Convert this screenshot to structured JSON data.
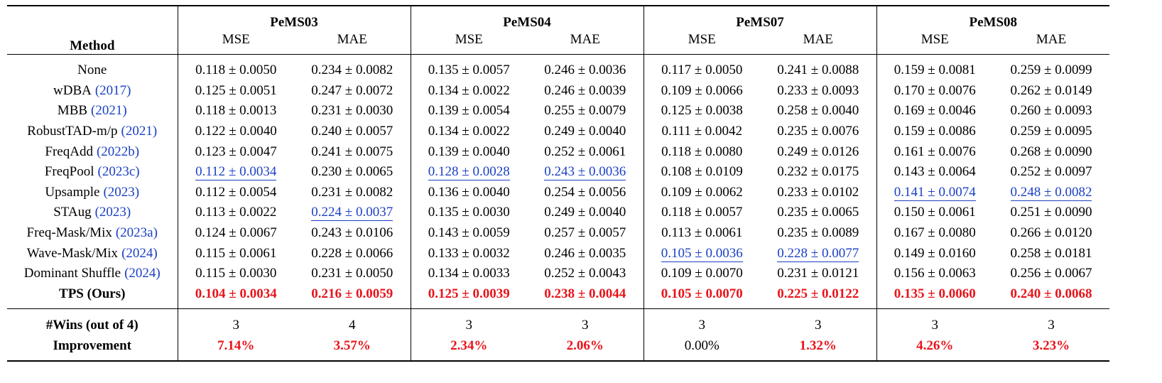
{
  "table": {
    "header": {
      "method": "Method",
      "groups": [
        {
          "name": "PeMS03",
          "columns": [
            "MSE",
            "MAE"
          ]
        },
        {
          "name": "PeMS04",
          "columns": [
            "MSE",
            "MAE"
          ]
        },
        {
          "name": "PeMS07",
          "columns": [
            "MSE",
            "MAE"
          ]
        },
        {
          "name": "PeMS08",
          "columns": [
            "MSE",
            "MAE"
          ]
        }
      ]
    },
    "rows": [
      {
        "method": "None",
        "cells": [
          "0.118 ± 0.0050",
          "0.234 ± 0.0082",
          "0.135 ± 0.0057",
          "0.246 ± 0.0036",
          "0.117 ± 0.0050",
          "0.241 ± 0.0088",
          "0.159 ± 0.0081",
          "0.259 ± 0.0099"
        ]
      },
      {
        "method": "wDBA",
        "cite": "(2017)",
        "cells": [
          "0.125 ± 0.0051",
          "0.247 ± 0.0072",
          "0.134 ± 0.0022",
          "0.246 ± 0.0039",
          "0.109 ± 0.0066",
          "0.233 ± 0.0093",
          "0.170 ± 0.0076",
          "0.262 ± 0.0149"
        ]
      },
      {
        "method": "MBB",
        "cite": "(2021)",
        "cells": [
          "0.118 ± 0.0013",
          "0.231 ± 0.0030",
          "0.139 ± 0.0054",
          "0.255 ± 0.0079",
          "0.125 ± 0.0038",
          "0.258 ± 0.0040",
          "0.169 ± 0.0046",
          "0.260 ± 0.0093"
        ]
      },
      {
        "method": "RobustTAD-m/p",
        "cite": "(2021)",
        "cells": [
          "0.122 ± 0.0040",
          "0.240 ± 0.0057",
          "0.134 ± 0.0022",
          "0.249 ± 0.0040",
          "0.111 ± 0.0042",
          "0.235 ± 0.0076",
          "0.159 ± 0.0086",
          "0.259 ± 0.0095"
        ]
      },
      {
        "method": "FreqAdd",
        "cite": "(2022b)",
        "cells": [
          "0.123 ± 0.0047",
          "0.241 ± 0.0075",
          "0.139 ± 0.0040",
          "0.252 ± 0.0061",
          "0.118 ± 0.0080",
          "0.249 ± 0.0126",
          "0.161 ± 0.0076",
          "0.268 ± 0.0090"
        ]
      },
      {
        "method": "FreqPool",
        "cite": "(2023c)",
        "cells": [
          "0.112 ± 0.0034",
          "0.230 ± 0.0065",
          "0.128 ± 0.0028",
          "0.243 ± 0.0036",
          "0.108 ± 0.0109",
          "0.232 ± 0.0175",
          "0.143 ± 0.0064",
          "0.252 ± 0.0097"
        ],
        "underlined": [
          0,
          2,
          3
        ]
      },
      {
        "method": "Upsample",
        "cite": "(2023)",
        "cells": [
          "0.112 ± 0.0054",
          "0.231 ± 0.0082",
          "0.136 ± 0.0040",
          "0.254 ± 0.0056",
          "0.109 ± 0.0062",
          "0.233 ± 0.0102",
          "0.141 ± 0.0074",
          "0.248 ± 0.0082"
        ],
        "underlined": [
          6,
          7
        ]
      },
      {
        "method": "STAug",
        "cite": "(2023)",
        "cells": [
          "0.113 ± 0.0022",
          "0.224 ± 0.0037",
          "0.135 ± 0.0030",
          "0.249 ± 0.0040",
          "0.118 ± 0.0057",
          "0.235 ± 0.0065",
          "0.150 ± 0.0061",
          "0.251 ± 0.0090"
        ],
        "underlined": [
          1
        ]
      },
      {
        "method": "Freq-Mask/Mix",
        "cite": "(2023a)",
        "cells": [
          "0.124 ± 0.0067",
          "0.243 ± 0.0106",
          "0.143 ± 0.0059",
          "0.257 ± 0.0057",
          "0.113 ± 0.0061",
          "0.235 ± 0.0089",
          "0.167 ± 0.0080",
          "0.266 ± 0.0120"
        ]
      },
      {
        "method": "Wave-Mask/Mix",
        "cite": "(2024)",
        "cells": [
          "0.115 ± 0.0061",
          "0.228 ± 0.0066",
          "0.133 ± 0.0032",
          "0.246 ± 0.0035",
          "0.105 ± 0.0036",
          "0.228 ± 0.0077",
          "0.149 ± 0.0160",
          "0.258 ± 0.0181"
        ],
        "underlined": [
          4,
          5
        ]
      },
      {
        "method": "Dominant Shuffle",
        "cite": "(2024)",
        "cells": [
          "0.115 ± 0.0030",
          "0.231 ± 0.0050",
          "0.134 ± 0.0033",
          "0.252 ± 0.0043",
          "0.109 ± 0.0070",
          "0.231 ± 0.0121",
          "0.156 ± 0.0063",
          "0.256 ± 0.0067"
        ]
      },
      {
        "method": "TPS (Ours)",
        "best": true,
        "cells": [
          "0.104 ± 0.0034",
          "0.216 ± 0.0059",
          "0.125 ± 0.0039",
          "0.238 ± 0.0044",
          "0.105 ± 0.0070",
          "0.225 ± 0.0122",
          "0.135 ± 0.0060",
          "0.240 ± 0.0068"
        ]
      }
    ],
    "summary": [
      {
        "label": "#Wins (out of 4)",
        "cells": [
          "3",
          "4",
          "3",
          "3",
          "3",
          "3",
          "3",
          "3"
        ]
      },
      {
        "label": "Improvement",
        "cells": [
          "7.14%",
          "3.57%",
          "2.34%",
          "2.06%",
          "0.00%",
          "1.32%",
          "4.26%",
          "3.23%"
        ],
        "emphasized": [
          0,
          1,
          2,
          3,
          5,
          6,
          7
        ]
      }
    ]
  }
}
